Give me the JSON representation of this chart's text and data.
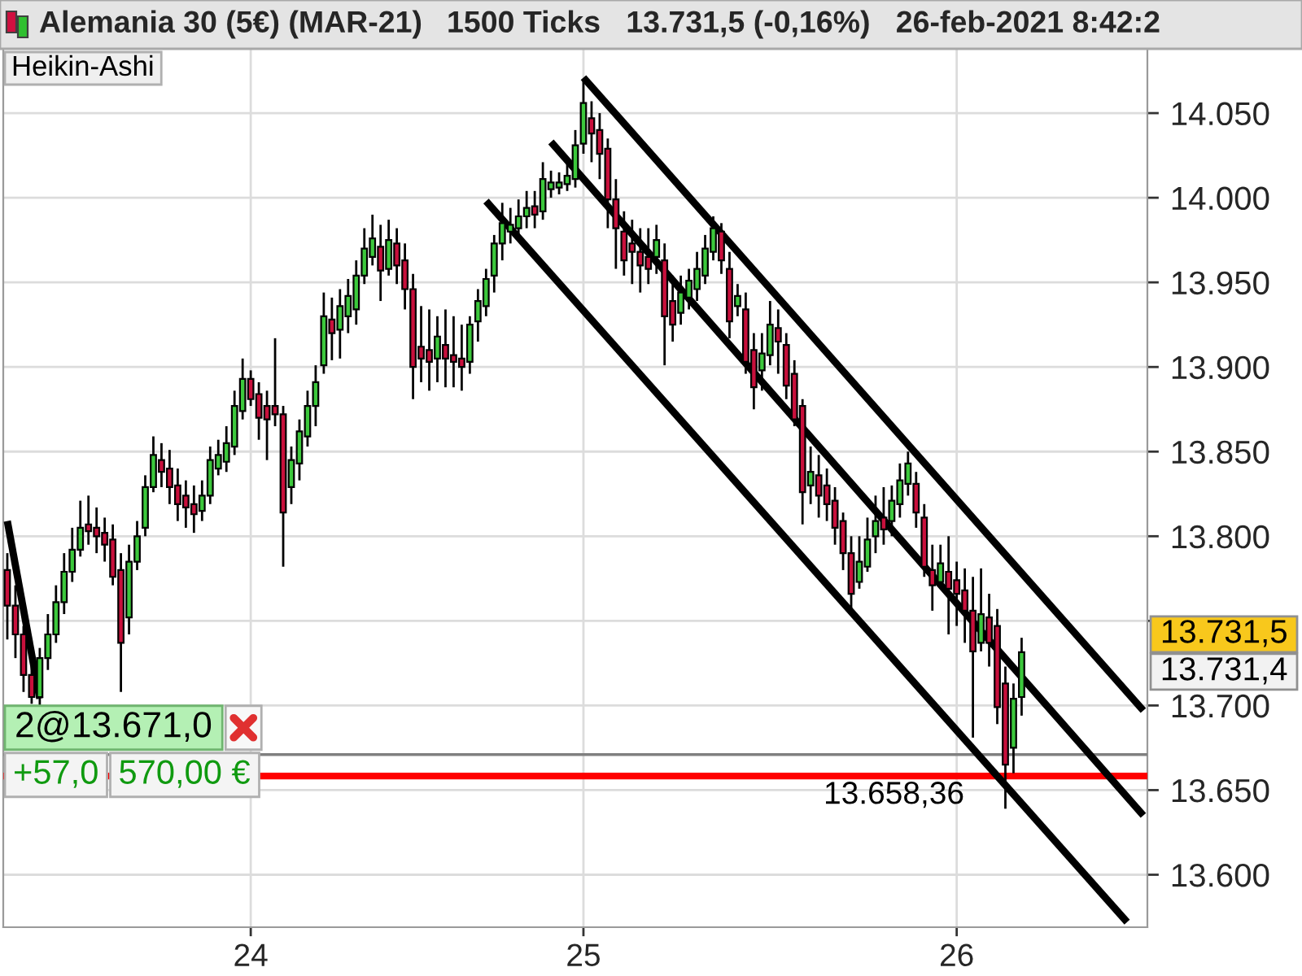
{
  "chart_data": {
    "type": "candlestick",
    "title": "Alemania 30 (5€) (MAR-21)",
    "subtitle": "1500 Ticks   13.731,5 (-0,16%)   26-feb-2021 8:42:2",
    "categories": [
      null,
      null,
      null,
      null,
      null,
      null,
      null,
      null,
      null,
      null,
      null,
      null,
      null,
      null,
      null,
      null,
      null,
      null,
      null,
      null,
      null,
      null,
      null,
      null,
      null,
      null,
      null,
      null,
      null,
      null,
      "24",
      null,
      null,
      null,
      null,
      null,
      null,
      null,
      null,
      null,
      null,
      null,
      null,
      null,
      null,
      null,
      null,
      null,
      null,
      null,
      null,
      null,
      null,
      null,
      null,
      null,
      null,
      null,
      null,
      null,
      null,
      null,
      null,
      null,
      null,
      null,
      null,
      null,
      null,
      null,
      null,
      "25",
      null,
      null,
      null,
      null,
      null,
      null,
      null,
      null,
      null,
      null,
      null,
      null,
      null,
      null,
      null,
      null,
      null,
      null,
      null,
      null,
      null,
      null,
      null,
      null,
      null,
      null,
      null,
      null,
      null,
      null,
      null,
      null,
      null,
      null,
      null,
      null,
      null,
      null,
      null,
      null,
      null,
      null,
      null,
      null,
      null,
      "26",
      null,
      null,
      null,
      null,
      null,
      null,
      null,
      null,
      null,
      null,
      null,
      null,
      null,
      null,
      null,
      null,
      null,
      null,
      null,
      null,
      null,
      null,
      null
    ],
    "ohlc": [
      [
        13780,
        13790,
        13739,
        13759
      ],
      [
        13759,
        13771,
        13728,
        13742
      ],
      [
        13742,
        13747,
        13708,
        13718
      ],
      [
        13718,
        13728,
        13701,
        13705
      ],
      [
        13705,
        13734,
        13700,
        13728
      ],
      [
        13728,
        13754,
        13721,
        13742
      ],
      [
        13742,
        13771,
        13737,
        13761
      ],
      [
        13761,
        13790,
        13754,
        13779
      ],
      [
        13779,
        13805,
        13773,
        13792
      ],
      [
        13792,
        13821,
        13788,
        13805
      ],
      [
        13807,
        13824,
        13795,
        13803
      ],
      [
        13805,
        13817,
        13790,
        13800
      ],
      [
        13802,
        13811,
        13785,
        13795
      ],
      [
        13798,
        13807,
        13771,
        13776
      ],
      [
        13780,
        13790,
        13708,
        13737
      ],
      [
        13752,
        13795,
        13742,
        13785
      ],
      [
        13785,
        13809,
        13780,
        13800
      ],
      [
        13805,
        13836,
        13800,
        13829
      ],
      [
        13829,
        13859,
        13826,
        13848
      ],
      [
        13845,
        13855,
        13829,
        13838
      ],
      [
        13840,
        13851,
        13819,
        13829
      ],
      [
        13830,
        13840,
        13809,
        13819
      ],
      [
        13824,
        13833,
        13805,
        13817
      ],
      [
        13819,
        13830,
        13802,
        13813
      ],
      [
        13815,
        13833,
        13809,
        13824
      ],
      [
        13824,
        13853,
        13819,
        13845
      ],
      [
        13840,
        13857,
        13836,
        13848
      ],
      [
        13844,
        13865,
        13838,
        13855
      ],
      [
        13853,
        13886,
        13848,
        13877
      ],
      [
        13874,
        13905,
        13869,
        13893
      ],
      [
        13893,
        13898,
        13877,
        13881
      ],
      [
        13884,
        13891,
        13857,
        13870
      ],
      [
        13877,
        13886,
        13845,
        13869
      ],
      [
        13877,
        13917,
        13865,
        13872
      ],
      [
        13872,
        13877,
        13782,
        13814
      ],
      [
        13829,
        13853,
        13819,
        13845
      ],
      [
        13843,
        13869,
        13833,
        13862
      ],
      [
        13859,
        13886,
        13853,
        13877
      ],
      [
        13877,
        13901,
        13865,
        13891
      ],
      [
        13901,
        13944,
        13896,
        13930
      ],
      [
        13928,
        13941,
        13904,
        13920
      ],
      [
        13922,
        13946,
        13905,
        13936
      ],
      [
        13930,
        13952,
        13920,
        13942
      ],
      [
        13934,
        13963,
        13925,
        13954
      ],
      [
        13954,
        13982,
        13949,
        13970
      ],
      [
        13965,
        13990,
        13960,
        13976
      ],
      [
        13971,
        13984,
        13939,
        13957
      ],
      [
        13958,
        13987,
        13954,
        13975
      ],
      [
        13973,
        13982,
        13949,
        13960
      ],
      [
        13963,
        13973,
        13934,
        13946
      ],
      [
        13946,
        13955,
        13881,
        13900
      ],
      [
        13912,
        13936,
        13891,
        13905
      ],
      [
        13910,
        13934,
        13886,
        13903
      ],
      [
        13905,
        13930,
        13891,
        13918
      ],
      [
        13913,
        13934,
        13888,
        13905
      ],
      [
        13907,
        13930,
        13888,
        13903
      ],
      [
        13905,
        13925,
        13886,
        13900
      ],
      [
        13903,
        13930,
        13896,
        13925
      ],
      [
        13927,
        13946,
        13915,
        13939
      ],
      [
        13936,
        13958,
        13930,
        13952
      ],
      [
        13954,
        13978,
        13944,
        13973
      ],
      [
        13973,
        13997,
        13963,
        13985
      ],
      [
        13980,
        13994,
        13973,
        13984
      ],
      [
        13982,
        13999,
        13977,
        13989
      ],
      [
        13989,
        14004,
        13982,
        13994
      ],
      [
        13995,
        14004,
        13982,
        13990
      ],
      [
        13992,
        14021,
        13987,
        14011
      ],
      [
        14005,
        14016,
        14000,
        14009
      ],
      [
        14006,
        14015,
        14002,
        14009
      ],
      [
        14008,
        14021,
        14004,
        14013
      ],
      [
        14011,
        14040,
        14006,
        14031
      ],
      [
        14032,
        14069,
        14026,
        14056
      ],
      [
        14047,
        14057,
        14021,
        14038
      ],
      [
        14040,
        14050,
        14011,
        14026
      ],
      [
        14029,
        14035,
        13982,
        13999
      ],
      [
        13999,
        14011,
        13958,
        13982
      ],
      [
        13980,
        13992,
        13954,
        13963
      ],
      [
        13973,
        13987,
        13949,
        13968
      ],
      [
        13968,
        13982,
        13944,
        13960
      ],
      [
        13965,
        13982,
        13949,
        13958
      ],
      [
        13965,
        13984,
        13955,
        13975
      ],
      [
        13963,
        13973,
        13901,
        13930
      ],
      [
        13939,
        13954,
        13915,
        13925
      ],
      [
        13932,
        13954,
        13925,
        13944
      ],
      [
        13941,
        13958,
        13934,
        13951
      ],
      [
        13946,
        13968,
        13939,
        13958
      ],
      [
        13954,
        13978,
        13949,
        13970
      ],
      [
        13968,
        13989,
        13963,
        13982
      ],
      [
        13980,
        13985,
        13955,
        13963
      ],
      [
        13958,
        13968,
        13917,
        13927
      ],
      [
        13936,
        13949,
        13930,
        13942
      ],
      [
        13934,
        13944,
        13896,
        13903
      ],
      [
        13910,
        13920,
        13875,
        13888
      ],
      [
        13898,
        13920,
        13886,
        13908
      ],
      [
        13907,
        13939,
        13901,
        13925
      ],
      [
        13923,
        13934,
        13896,
        13915
      ],
      [
        13913,
        13920,
        13881,
        13889
      ],
      [
        13896,
        13904,
        13865,
        13869
      ],
      [
        13877,
        13881,
        13807,
        13826
      ],
      [
        13830,
        13853,
        13819,
        13838
      ],
      [
        13836,
        13848,
        13811,
        13824
      ],
      [
        13830,
        13840,
        13809,
        13819
      ],
      [
        13821,
        13829,
        13795,
        13805
      ],
      [
        13809,
        13814,
        13780,
        13790
      ],
      [
        13790,
        13800,
        13754,
        13766
      ],
      [
        13773,
        13800,
        13769,
        13785
      ],
      [
        13782,
        13811,
        13779,
        13798
      ],
      [
        13800,
        13824,
        13790,
        13809
      ],
      [
        13811,
        13829,
        13795,
        13804
      ],
      [
        13809,
        13830,
        13800,
        13821
      ],
      [
        13819,
        13843,
        13811,
        13833
      ],
      [
        13831,
        13850,
        13824,
        13843
      ],
      [
        13831,
        13838,
        13805,
        13814
      ],
      [
        13811,
        13819,
        13776,
        13782
      ],
      [
        13780,
        13795,
        13756,
        13771
      ],
      [
        13773,
        13795,
        13769,
        13784
      ],
      [
        13779,
        13800,
        13742,
        13769
      ],
      [
        13774,
        13785,
        13747,
        13766
      ],
      [
        13768,
        13781,
        13737,
        13756
      ],
      [
        13756,
        13776,
        13681,
        13732
      ],
      [
        13737,
        13781,
        13732,
        13754
      ],
      [
        13752,
        13766,
        13723,
        13737
      ],
      [
        13747,
        13757,
        13689,
        13699
      ],
      [
        13713,
        13723,
        13639,
        13665
      ],
      [
        13675,
        13713,
        13660,
        13704
      ],
      [
        13705,
        13740,
        13694,
        13731.5
      ],
      null,
      null,
      null,
      null,
      null,
      null,
      null,
      null,
      null,
      null,
      null,
      null,
      null,
      null,
      null
    ],
    "colors": [
      "#c8103c",
      "#c8103c",
      "#c8103c",
      "#c8103c",
      "#3cc83c",
      "#3cc83c",
      "#3cc83c",
      "#3cc83c",
      "#3cc83c",
      "#3cc83c",
      "#c8103c",
      "#c8103c",
      "#c8103c",
      "#c8103c",
      "#c8103c",
      "#3cc83c",
      "#3cc83c",
      "#3cc83c",
      "#3cc83c",
      "#c8103c",
      "#c8103c",
      "#c8103c",
      "#c8103c",
      "#c8103c",
      "#3cc83c",
      "#3cc83c",
      "#3cc83c",
      "#3cc83c",
      "#3cc83c",
      "#3cc83c",
      "#c8103c",
      "#c8103c",
      "#c8103c",
      "#c8103c",
      "#c8103c",
      "#3cc83c",
      "#3cc83c",
      "#3cc83c",
      "#3cc83c",
      "#3cc83c",
      "#c8103c",
      "#3cc83c",
      "#3cc83c",
      "#3cc83c",
      "#3cc83c",
      "#3cc83c",
      "#c8103c",
      "#3cc83c",
      "#c8103c",
      "#c8103c",
      "#c8103c",
      "#c8103c",
      "#c8103c",
      "#3cc83c",
      "#c8103c",
      "#c8103c",
      "#c8103c",
      "#3cc83c",
      "#3cc83c",
      "#3cc83c",
      "#3cc83c",
      "#3cc83c",
      "#3cc83c",
      "#3cc83c",
      "#3cc83c",
      "#c8103c",
      "#3cc83c",
      "#3cc83c",
      "#3cc83c",
      "#3cc83c",
      "#3cc83c",
      "#3cc83c",
      "#c8103c",
      "#c8103c",
      "#c8103c",
      "#c8103c",
      "#c8103c",
      "#c8103c",
      "#c8103c",
      "#c8103c",
      "#3cc83c",
      "#c8103c",
      "#c8103c",
      "#3cc83c",
      "#3cc83c",
      "#3cc83c",
      "#3cc83c",
      "#3cc83c",
      "#c8103c",
      "#c8103c",
      "#3cc83c",
      "#c8103c",
      "#c8103c",
      "#3cc83c",
      "#3cc83c",
      "#c8103c",
      "#c8103c",
      "#c8103c",
      "#c8103c",
      "#3cc83c",
      "#c8103c",
      "#c8103c",
      "#c8103c",
      "#c8103c",
      "#c8103c",
      "#3cc83c",
      "#3cc83c",
      "#3cc83c",
      "#c8103c",
      "#3cc83c",
      "#3cc83c",
      "#3cc83c",
      "#c8103c",
      "#c8103c",
      "#c8103c",
      "#3cc83c",
      "#c8103c",
      "#c8103c",
      "#c8103c",
      "#c8103c",
      "#3cc83c",
      "#c8103c",
      "#c8103c",
      "#c8103c",
      "#3cc83c",
      "#3cc83c",
      null,
      null,
      null,
      null,
      null,
      null,
      null,
      null,
      null,
      null,
      null,
      null,
      null,
      null,
      null
    ],
    "series": [
      {
        "type": "line",
        "color": "#000000",
        "values": [
          null,
          null,
          null,
          null,
          null,
          null,
          null,
          null,
          null,
          null,
          null,
          null,
          null,
          null,
          null,
          null,
          null,
          null,
          null,
          null,
          null,
          null,
          null,
          null,
          null,
          null,
          null,
          null,
          null,
          null,
          null,
          null,
          null,
          null,
          null,
          null,
          null,
          null,
          null,
          null,
          null,
          null,
          null,
          null,
          null,
          null,
          null,
          null,
          null,
          null,
          null,
          null,
          null,
          null,
          null,
          null,
          null,
          null,
          null,
          null,
          null,
          null,
          null,
          null,
          null,
          null,
          null,
          null,
          null,
          null,
          null,
          14071,
          null,
          null,
          null,
          null,
          null,
          null,
          null,
          null,
          null,
          null,
          null,
          null,
          null,
          null,
          null,
          null,
          null,
          null,
          null,
          null,
          null,
          null,
          null,
          null,
          null,
          null,
          null,
          null,
          null,
          null,
          null,
          null,
          null,
          null,
          null,
          null,
          null,
          null,
          null,
          null,
          null,
          null,
          null,
          null,
          null,
          null,
          null,
          null,
          null,
          null,
          null,
          null,
          null,
          null,
          null,
          null,
          null,
          null,
          null,
          null,
          null,
          null,
          null,
          null,
          null,
          null,
          null,
          null,
          13697
        ]
      },
      {
        "type": "line",
        "color": "#000000",
        "values": [
          null,
          null,
          null,
          null,
          null,
          null,
          null,
          null,
          null,
          null,
          null,
          null,
          null,
          null,
          null,
          null,
          null,
          null,
          null,
          null,
          null,
          null,
          null,
          null,
          null,
          null,
          null,
          null,
          null,
          null,
          null,
          null,
          null,
          null,
          null,
          null,
          null,
          null,
          null,
          null,
          null,
          null,
          null,
          null,
          null,
          null,
          null,
          null,
          null,
          null,
          null,
          null,
          null,
          null,
          null,
          null,
          null,
          null,
          null,
          null,
          null,
          null,
          null,
          null,
          null,
          null,
          null,
          14033,
          null,
          null,
          null,
          null,
          null,
          null,
          null,
          null,
          null,
          null,
          null,
          null,
          null,
          null,
          null,
          null,
          null,
          null,
          null,
          null,
          null,
          null,
          null,
          null,
          null,
          null,
          null,
          null,
          null,
          null,
          null,
          null,
          null,
          null,
          null,
          null,
          null,
          null,
          null,
          null,
          null,
          null,
          null,
          null,
          null,
          null,
          null,
          null,
          null,
          null,
          null,
          null,
          null,
          null,
          null,
          null,
          null,
          null,
          null,
          null,
          null,
          null,
          null,
          null,
          null,
          null,
          null,
          null,
          null,
          null,
          null,
          null,
          13635
        ]
      },
      {
        "type": "line",
        "color": "#000000",
        "values": [
          null,
          null,
          null,
          null,
          null,
          null,
          null,
          null,
          null,
          null,
          null,
          null,
          null,
          null,
          null,
          null,
          null,
          null,
          null,
          null,
          null,
          null,
          null,
          null,
          null,
          null,
          null,
          null,
          null,
          null,
          null,
          null,
          null,
          null,
          null,
          null,
          null,
          null,
          null,
          null,
          null,
          null,
          null,
          null,
          null,
          null,
          null,
          null,
          null,
          null,
          null,
          null,
          null,
          null,
          null,
          null,
          null,
          null,
          null,
          13998,
          null,
          null,
          null,
          null,
          null,
          null,
          null,
          null,
          null,
          null,
          null,
          null,
          null,
          null,
          null,
          null,
          null,
          null,
          null,
          null,
          null,
          null,
          null,
          null,
          null,
          null,
          null,
          null,
          null,
          null,
          null,
          null,
          null,
          null,
          null,
          null,
          null,
          null,
          null,
          null,
          null,
          null,
          null,
          null,
          null,
          null,
          null,
          null,
          null,
          null,
          null,
          null,
          null,
          null,
          null,
          null,
          null,
          null,
          null,
          null,
          null,
          null,
          null,
          null,
          null,
          null,
          null,
          null,
          null,
          null,
          null,
          null,
          null,
          null,
          null,
          null,
          null,
          null,
          13572,
          null,
          null
        ]
      },
      {
        "type": "line",
        "color": "#000000",
        "values": [
          13809,
          null,
          null,
          null,
          13704,
          null,
          null,
          null,
          null,
          null,
          null,
          null,
          null,
          null,
          null,
          null,
          null,
          null,
          null,
          null,
          null,
          null,
          null,
          null,
          null,
          null,
          null,
          null,
          null,
          null,
          null,
          null,
          null,
          null,
          null,
          null,
          null,
          null,
          null,
          null,
          null,
          null,
          null,
          null,
          null,
          null,
          null,
          null,
          null,
          null,
          null,
          null,
          null,
          null,
          null,
          null,
          null,
          null,
          null,
          null,
          null,
          null,
          null,
          null,
          null,
          null,
          null,
          null,
          null,
          null,
          null,
          null,
          null,
          null,
          null,
          null,
          null,
          null,
          null,
          null,
          null,
          null,
          null,
          null,
          null,
          null,
          null,
          null,
          null,
          null,
          null,
          null,
          null,
          null,
          null,
          null,
          null,
          null,
          null,
          null,
          null,
          null,
          null,
          null,
          null,
          null,
          null,
          null,
          null,
          null,
          null,
          null,
          null,
          null,
          null,
          null,
          null,
          null,
          null,
          null,
          null,
          null,
          null,
          null,
          null,
          null,
          null,
          null,
          null,
          null,
          null,
          null,
          null,
          null,
          null,
          null,
          null,
          null,
          null,
          null,
          null
        ]
      }
    ],
    "ref_lines": [
      {
        "axis": "y",
        "value": 13671,
        "label": "2@13.671,0",
        "color": "#808080"
      },
      {
        "axis": "y",
        "value": 13658.36,
        "label": "13.658,36",
        "color": "#ff0000"
      }
    ],
    "annotations": [
      "Heikin-Ashi",
      "+57,0",
      "570,00 €",
      "13.731,5",
      "13.731,4"
    ],
    "ylim": [
      13569,
      14088
    ],
    "yticks": [
      {
        "value": 13600,
        "label": "13.600"
      },
      {
        "value": 13650,
        "label": "13.650"
      },
      {
        "value": 13700,
        "label": "13.700"
      },
      {
        "value": 13750,
        "label": null
      },
      {
        "value": 13800,
        "label": "13.800"
      },
      {
        "value": 13850,
        "label": "13.850"
      },
      {
        "value": 13900,
        "label": "13.900"
      },
      {
        "value": 13950,
        "label": "13.950"
      },
      {
        "value": 14000,
        "label": "14.000"
      },
      {
        "value": 14050,
        "label": "14.050"
      }
    ],
    "grid": true
  }
}
